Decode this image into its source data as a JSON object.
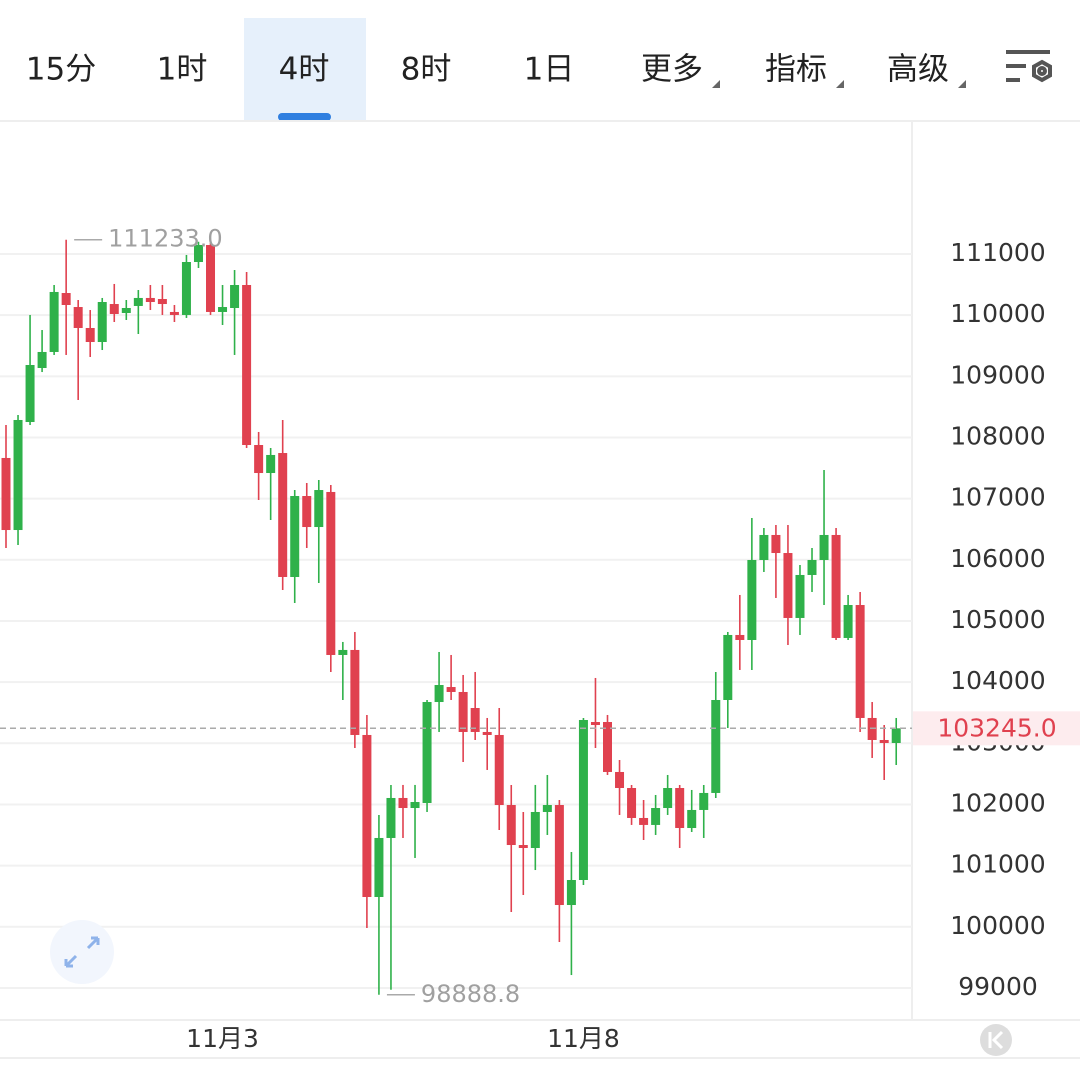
{
  "tabs": [
    "15分",
    "1时",
    "4时",
    "8时",
    "1日",
    "更多",
    "指标",
    "高级"
  ],
  "active_tab": 2,
  "chart_data": {
    "type": "candlestick",
    "categories": [
      null,
      null,
      null,
      null,
      null,
      null,
      null,
      null,
      null,
      null,
      null,
      null,
      null,
      null,
      null,
      null,
      null,
      null,
      "11月3",
      null,
      null,
      null,
      null,
      null,
      null,
      null,
      null,
      null,
      null,
      null,
      null,
      null,
      null,
      null,
      null,
      null,
      null,
      null,
      null,
      null,
      null,
      null,
      null,
      null,
      null,
      null,
      null,
      null,
      "11月8",
      null,
      null,
      null,
      null,
      null,
      null,
      null,
      null,
      null,
      null,
      null,
      null,
      null,
      null,
      null,
      null,
      null,
      null,
      null,
      null,
      null,
      null,
      null,
      null,
      null,
      null
    ],
    "open": [
      107665,
      106487,
      108253,
      109136,
      109398,
      110362,
      110133,
      109790,
      109561,
      110182,
      110035,
      110150,
      110281,
      110264,
      110052,
      110003,
      110869,
      111147,
      110052,
      110117,
      110493,
      107877,
      107419,
      107746,
      105719,
      107043,
      106536,
      107109,
      104444,
      104526,
      103136,
      100487,
      101452,
      102106,
      101942,
      102024,
      103675,
      103920,
      103839,
      103577,
      103185,
      103136,
      101991,
      101337,
      101288,
      101877,
      101991,
      100356,
      100765,
      103348,
      103348,
      102531,
      102269,
      101779,
      101665,
      101942,
      102269,
      101615,
      101910,
      102188,
      103708,
      104771,
      104689,
      105997,
      106406,
      106111,
      105049,
      105752,
      105997,
      106406,
      104722,
      105261,
      103414,
      103054,
      103005
    ],
    "high": [
      108204,
      108368,
      110003,
      109757,
      110493,
      111233,
      110248,
      110084,
      110281,
      110510,
      110248,
      110411,
      110493,
      110493,
      110166,
      110984,
      111200,
      111180,
      110493,
      110738,
      110706,
      108090,
      107828,
      108286,
      107142,
      107255,
      107305,
      107223,
      104657,
      104820,
      103463,
      101828,
      102319,
      102319,
      102319,
      103708,
      104493,
      104444,
      104117,
      104166,
      103414,
      103577,
      102319,
      101877,
      102319,
      102482,
      102073,
      101223,
      103414,
      104068,
      103463,
      102727,
      102318,
      102073,
      102155,
      102482,
      102318,
      102237,
      102318,
      104166,
      104820,
      105425,
      106684,
      106520,
      106569,
      106569,
      105915,
      106193,
      107468,
      106520,
      105425,
      105474,
      103675,
      103299,
      103414
    ],
    "low": [
      106193,
      106242,
      108204,
      109070,
      109349,
      109349,
      108613,
      109316,
      109430,
      109888,
      109921,
      109692,
      110084,
      110003,
      109888,
      109954,
      110771,
      110003,
      109839,
      109349,
      107828,
      106978,
      106651,
      105506,
      105294,
      106193,
      105621,
      104166,
      103708,
      102923,
      99980,
      98888.8,
      98970,
      101452,
      101125,
      101877,
      103185,
      103708,
      102694,
      103054,
      102564,
      101583,
      100242,
      100520,
      100928,
      101501,
      99751,
      99211,
      100683,
      102923,
      102482,
      101828,
      101665,
      101419,
      101501,
      101828,
      101288,
      101550,
      101452,
      102106,
      103250,
      104199,
      104199,
      105801,
      105376,
      104607,
      104771,
      105474,
      105261,
      104689,
      104689,
      103185,
      102760,
      102400,
      102645
    ],
    "close": [
      106487,
      108286,
      109185,
      109398,
      110379,
      110166,
      109790,
      109561,
      110215,
      110019,
      110117,
      110281,
      110215,
      110182,
      110003,
      110869,
      111147,
      110052,
      110133,
      110493,
      107877,
      107419,
      107714,
      105719,
      107043,
      106536,
      107141,
      104444,
      104526,
      103136,
      100487,
      101452,
      102106,
      101942,
      102040,
      103675,
      103953,
      103839,
      103185,
      103185,
      103136,
      101991,
      101337,
      101288,
      101877,
      101991,
      100356,
      100765,
      103381,
      103299,
      102531,
      102269,
      101779,
      101665,
      101942,
      102269,
      101615,
      101910,
      102188,
      103708,
      104771,
      104689,
      105997,
      106406,
      106111,
      105049,
      105752,
      105997,
      106406,
      104722,
      105261,
      103414,
      103054,
      103005,
      103245
    ],
    "up_color": "#2fb14a",
    "down_color": "#e0414f",
    "ylim": [
      98476,
      113158
    ],
    "yticks": [
      99000,
      100000,
      101000,
      102000,
      103000,
      104000,
      105000,
      106000,
      107000,
      108000,
      109000,
      110000,
      111000
    ],
    "grid": true,
    "high_label": {
      "value": 111233,
      "label": "111233.0"
    },
    "low_label": {
      "value": 98888.8,
      "label": "98888.8"
    },
    "last_price": {
      "value": 103245,
      "label": "103245.0"
    }
  }
}
